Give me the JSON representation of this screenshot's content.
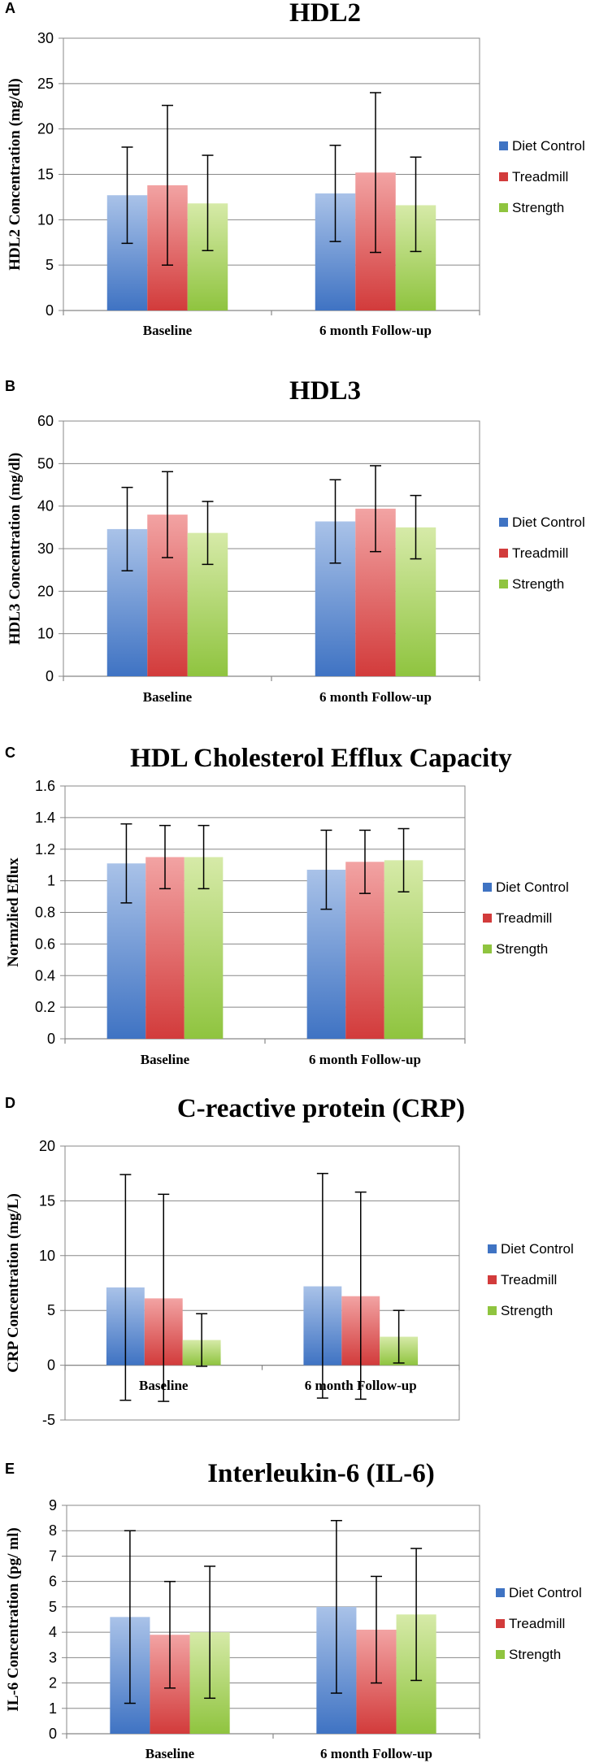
{
  "colors": {
    "Diet Control": {
      "top": "#a9c2e8",
      "bottom": "#3f73c3"
    },
    "Treadmill": {
      "top": "#f2a3a3",
      "bottom": "#d23b3b"
    },
    "Strength": {
      "top": "#d6eaa8",
      "bottom": "#8fc43f"
    }
  },
  "chart_data": [
    {
      "panel": "A",
      "type": "bar",
      "title": "HDL2",
      "ylabel": "HDL2 Concentration (mg/dl)",
      "categories": [
        "Baseline",
        "6 month Follow-up"
      ],
      "yticks": [
        "0",
        "5",
        "10",
        "15",
        "20",
        "25",
        "30"
      ],
      "ylim": [
        0,
        30
      ],
      "series": [
        {
          "name": "Diet Control",
          "values": [
            12.7,
            12.9
          ],
          "err_low": [
            7.4,
            7.6
          ],
          "err_high": [
            18.0,
            18.2
          ]
        },
        {
          "name": "Treadmill",
          "values": [
            13.8,
            15.2
          ],
          "err_low": [
            5.0,
            6.4
          ],
          "err_high": [
            22.6,
            24.0
          ]
        },
        {
          "name": "Strength",
          "values": [
            11.8,
            11.6
          ],
          "err_low": [
            6.6,
            6.5
          ],
          "err_high": [
            17.1,
            16.9
          ]
        }
      ]
    },
    {
      "panel": "B",
      "type": "bar",
      "title": "HDL3",
      "ylabel": "HDL3 Concentration (mg/dl)",
      "categories": [
        "Baseline",
        "6 month Follow-up"
      ],
      "yticks": [
        "0",
        "10",
        "20",
        "30",
        "40",
        "50",
        "60"
      ],
      "ylim": [
        0,
        60
      ],
      "series": [
        {
          "name": "Diet Control",
          "values": [
            34.6,
            36.4
          ],
          "err_low": [
            24.8,
            26.6
          ],
          "err_high": [
            44.4,
            46.2
          ]
        },
        {
          "name": "Treadmill",
          "values": [
            38.0,
            39.4
          ],
          "err_low": [
            27.9,
            29.3
          ],
          "err_high": [
            48.1,
            49.5
          ]
        },
        {
          "name": "Strength",
          "values": [
            33.7,
            35.0
          ],
          "err_low": [
            26.3,
            27.6
          ],
          "err_high": [
            41.1,
            42.5
          ]
        }
      ]
    },
    {
      "panel": "C",
      "type": "bar",
      "title": "HDL Cholesterol Efflux Capacity",
      "ylabel": "Normzlied Eflux",
      "categories": [
        "Baseline",
        "6 month Follow-up"
      ],
      "yticks": [
        "0",
        "0.2",
        "0.4",
        "0.6",
        "0.8",
        "1",
        "1.2",
        "1.4",
        "1.6"
      ],
      "ylim": [
        0,
        1.6
      ],
      "series": [
        {
          "name": "Diet Control",
          "values": [
            1.11,
            1.07
          ],
          "err_low": [
            0.86,
            0.82
          ],
          "err_high": [
            1.36,
            1.32
          ]
        },
        {
          "name": "Treadmill",
          "values": [
            1.15,
            1.12
          ],
          "err_low": [
            0.95,
            0.92
          ],
          "err_high": [
            1.35,
            1.32
          ]
        },
        {
          "name": "Strength",
          "values": [
            1.15,
            1.13
          ],
          "err_low": [
            0.95,
            0.93
          ],
          "err_high": [
            1.35,
            1.33
          ]
        }
      ]
    },
    {
      "panel": "D",
      "type": "bar",
      "title": "C-reactive protein (CRP)",
      "ylabel": "CRP Concentration (mg/L)",
      "categories": [
        "Baseline",
        "6 month Follow-up"
      ],
      "yticks": [
        "-5",
        "0",
        "5",
        "10",
        "15",
        "20"
      ],
      "ylim": [
        -5,
        20
      ],
      "series": [
        {
          "name": "Diet Control",
          "values": [
            7.1,
            7.2
          ],
          "err_low": [
            -3.2,
            -3.0
          ],
          "err_high": [
            17.4,
            17.5
          ]
        },
        {
          "name": "Treadmill",
          "values": [
            6.1,
            6.3
          ],
          "err_low": [
            -3.3,
            -3.1
          ],
          "err_high": [
            15.6,
            15.8
          ]
        },
        {
          "name": "Strength",
          "values": [
            2.3,
            2.6
          ],
          "err_low": [
            -0.1,
            0.2
          ],
          "err_high": [
            4.7,
            5.0
          ]
        }
      ]
    },
    {
      "panel": "E",
      "type": "bar",
      "title": "Interleukin-6 (IL-6)",
      "ylabel": "IL-6 Concentration (pg/ ml)",
      "categories": [
        "Baseline",
        "6 month Follow-up"
      ],
      "yticks": [
        "0",
        "1",
        "2",
        "3",
        "4",
        "5",
        "6",
        "7",
        "8",
        "9"
      ],
      "ylim": [
        0,
        9
      ],
      "series": [
        {
          "name": "Diet Control",
          "values": [
            4.6,
            5.0
          ],
          "err_low": [
            1.2,
            1.6
          ],
          "err_high": [
            8.0,
            8.4
          ]
        },
        {
          "name": "Treadmill",
          "values": [
            3.9,
            4.1
          ],
          "err_low": [
            1.8,
            2.0
          ],
          "err_high": [
            6.0,
            6.2
          ]
        },
        {
          "name": "Strength",
          "values": [
            4.0,
            4.7
          ],
          "err_low": [
            1.4,
            2.1
          ],
          "err_high": [
            6.6,
            7.3
          ]
        }
      ]
    }
  ]
}
